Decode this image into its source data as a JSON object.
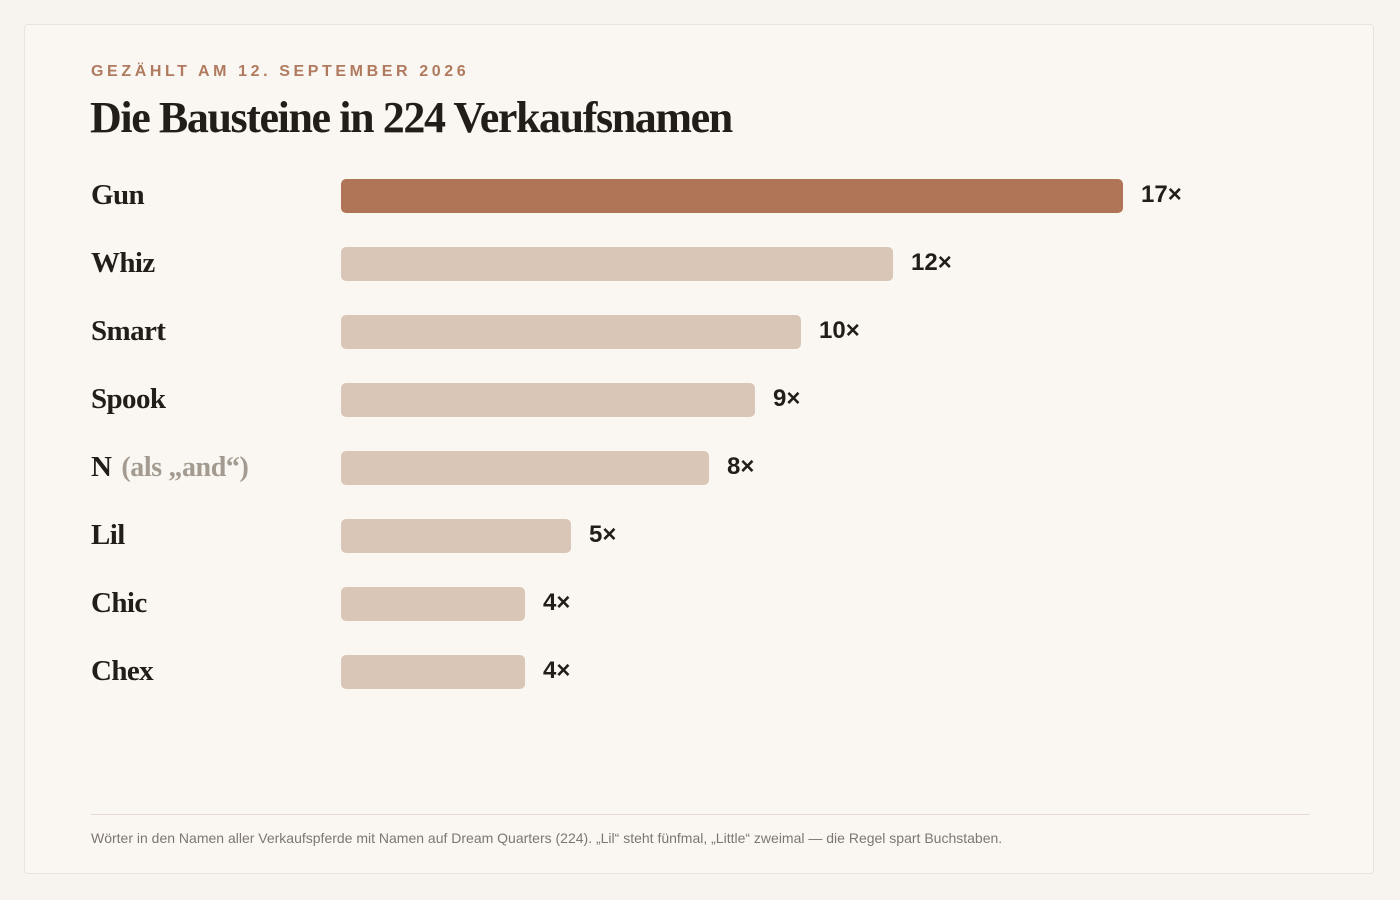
{
  "header": {
    "eyebrow": "GEZÄHLT AM 12. SEPTEMBER 2026",
    "title": "Die Bausteine in 224 Verkaufsnamen"
  },
  "colors": {
    "highlight": "#b07557",
    "bar": "#dac6b7",
    "eyebrow": "#b07a5e",
    "text": "#221d18",
    "muted": "#a39a90"
  },
  "chart_data": {
    "type": "bar",
    "orientation": "horizontal",
    "title": "Die Bausteine in 224 Verkaufsnamen",
    "categories": [
      "Gun",
      "Whiz",
      "Smart",
      "Spook",
      "N",
      "Lil",
      "Chic",
      "Chex"
    ],
    "category_notes": [
      "",
      "",
      "",
      "",
      "(als „and“)",
      "",
      "",
      ""
    ],
    "values": [
      17,
      12,
      10,
      9,
      8,
      5,
      4,
      4
    ],
    "value_labels": [
      "17×",
      "12×",
      "10×",
      "9×",
      "8×",
      "5×",
      "4×",
      "4×"
    ],
    "highlight_index": 0,
    "xlim": [
      0,
      17
    ],
    "grid": false,
    "legend": "none"
  },
  "footer": {
    "note": "Wörter in den Namen aller Verkaufspferde mit Namen auf Dream Quarters (224). „Lil“ steht fünfmal, „Little“ zweimal — die Regel spart Buchstaben."
  }
}
